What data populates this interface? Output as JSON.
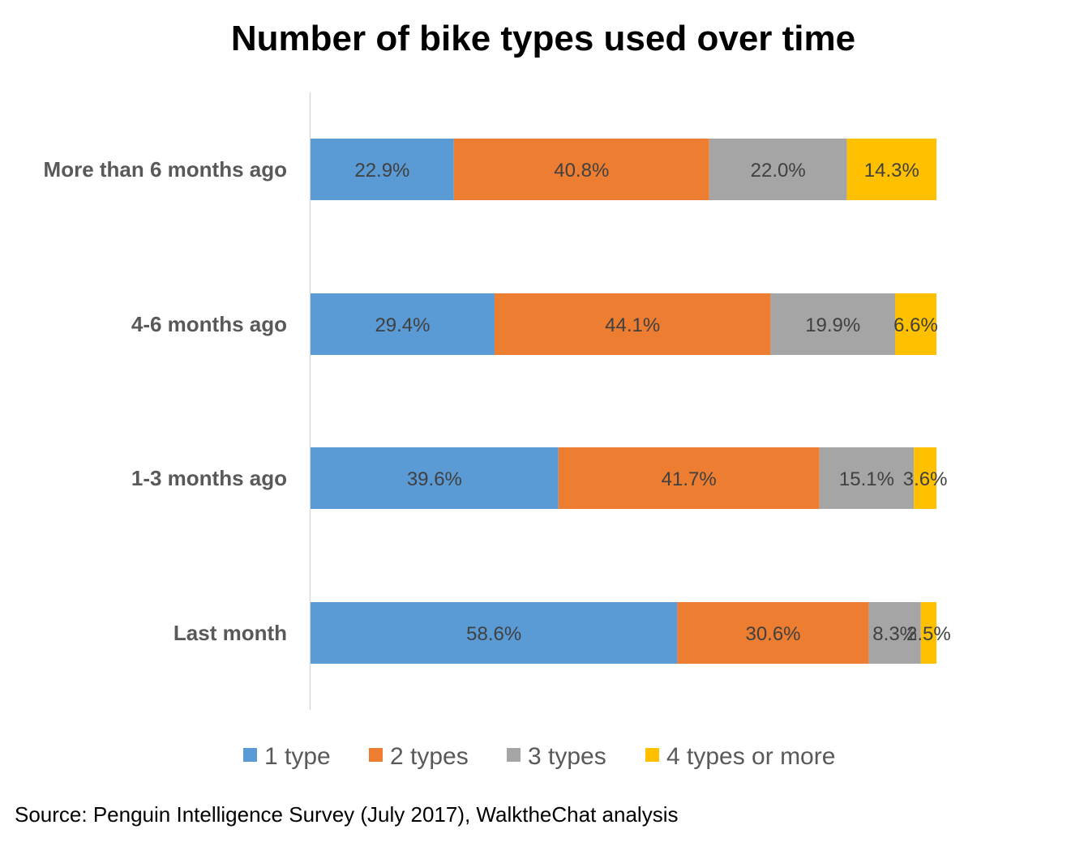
{
  "chart_data": {
    "type": "bar",
    "orientation": "horizontal",
    "stacked": true,
    "title": "Number of bike types used over time",
    "categories": [
      "More than 6 months ago",
      "4-6 months ago",
      "1-3 months ago",
      "Last month"
    ],
    "series": [
      {
        "name": "1 type",
        "color": "#5b9bd5",
        "values": [
          22.9,
          29.4,
          39.6,
          58.6
        ],
        "labels": [
          "22.9%",
          "29.4%",
          "39.6%",
          "58.6%"
        ]
      },
      {
        "name": "2 types",
        "color": "#ed7d31",
        "values": [
          40.8,
          44.1,
          41.7,
          30.6
        ],
        "labels": [
          "40.8%",
          "44.1%",
          "41.7%",
          "30.6%"
        ]
      },
      {
        "name": "3 types",
        "color": "#a5a5a5",
        "values": [
          22.0,
          19.9,
          15.1,
          8.3
        ],
        "labels": [
          "22.0%",
          "19.9%",
          "15.1%",
          "8.3%"
        ]
      },
      {
        "name": "4 types or more",
        "color": "#ffc000",
        "values": [
          14.3,
          6.6,
          3.6,
          2.5
        ],
        "labels": [
          "14.3%",
          "6.6%",
          "3.6%",
          "2.5%"
        ]
      }
    ],
    "xlim": [
      0,
      100
    ],
    "grid": false,
    "legend": "bottom"
  },
  "source": "Source: Penguin Intelligence Survey (July 2017), WalktheChat analysis"
}
